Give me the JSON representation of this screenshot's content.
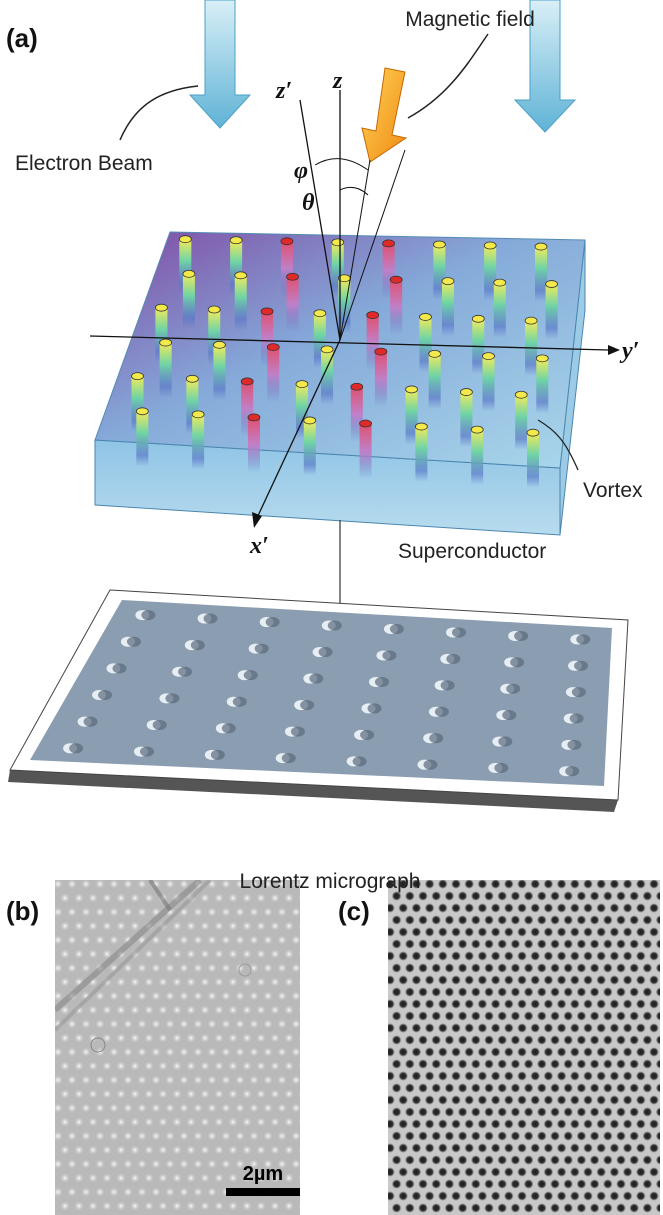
{
  "panel_a": {
    "label": "(a)",
    "magnetic_field": "Magnetic field",
    "electron_beam": "Electron Beam",
    "z_prime": "z′",
    "z": "z",
    "phi": "φ",
    "theta": "θ",
    "y_prime": "y′",
    "x_prime": "x′",
    "vortex": "Vortex",
    "superconductor": "Superconductor",
    "lorentz": "Lorentz micrograph"
  },
  "panel_b": {
    "label": "(b)",
    "scale_bar": "2µm"
  },
  "panel_c": {
    "label": "(c)"
  }
}
